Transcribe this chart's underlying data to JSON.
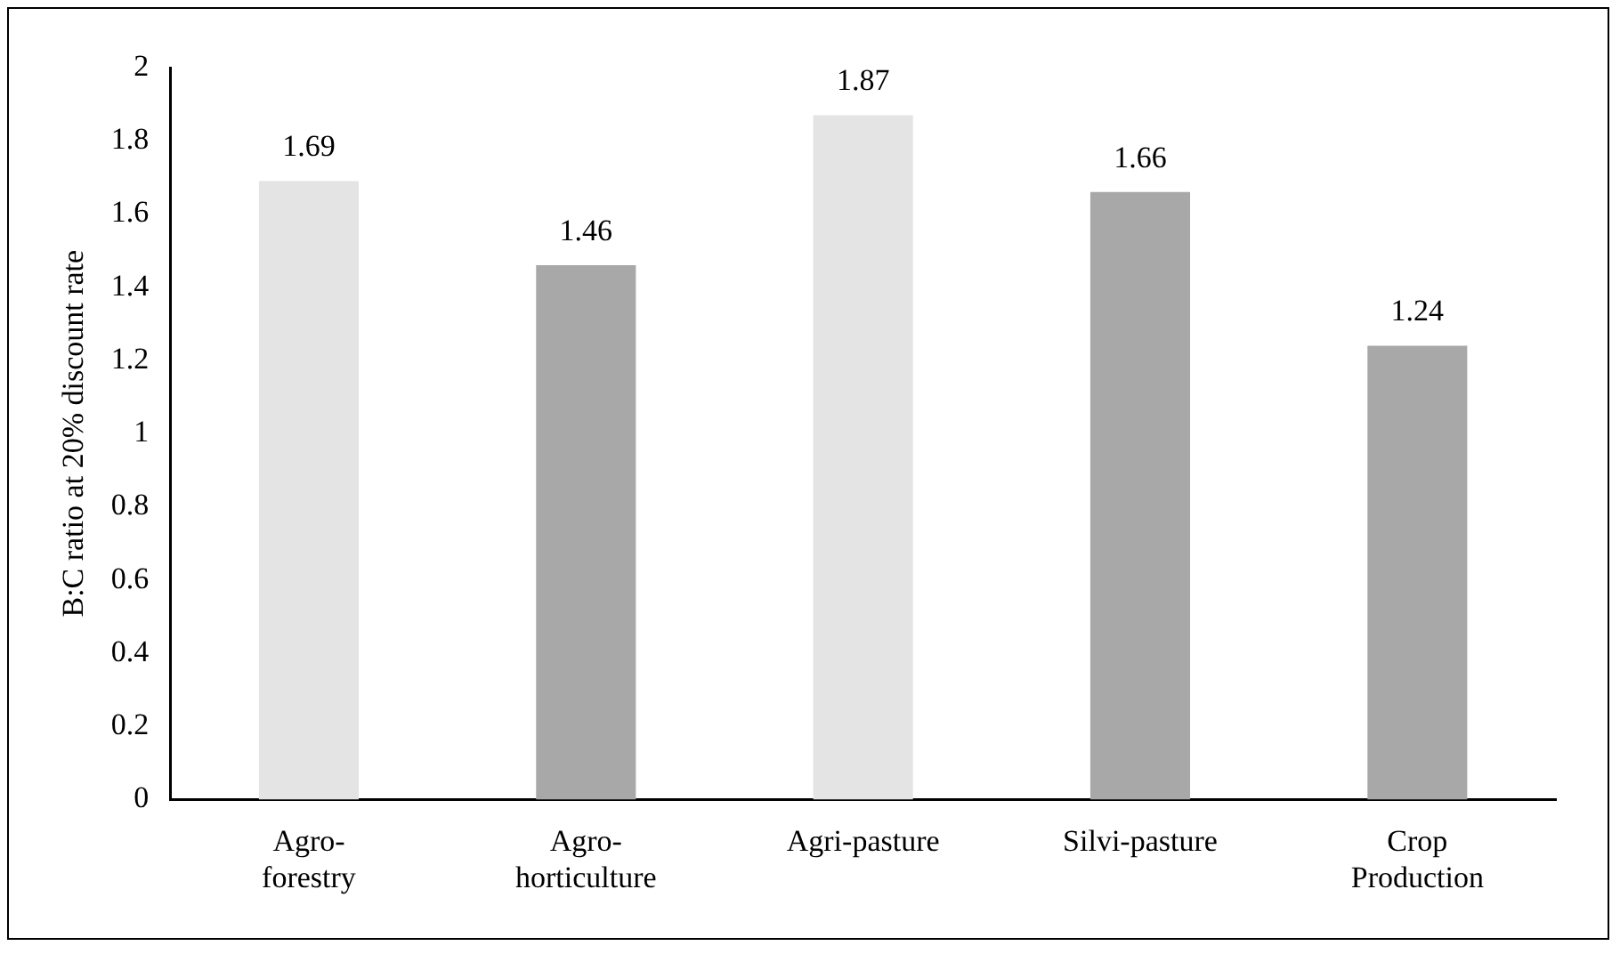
{
  "chart_data": {
    "type": "bar",
    "ylabel": "B:C ratio at 20% discount rate",
    "categories": [
      "Agro-\nforestry",
      "Agro-\nhorticulture",
      "Agri-pasture",
      "Silvi-pasture",
      "Crop\nProduction"
    ],
    "values": [
      1.69,
      1.46,
      1.87,
      1.66,
      1.24
    ],
    "colors": [
      "#e4e4e4",
      "#a8a8a8",
      "#e4e4e4",
      "#a8a8a8",
      "#a8a8a8"
    ],
    "ylim": [
      0,
      2
    ],
    "yticks": [
      0,
      0.2,
      0.4,
      0.6,
      0.8,
      1,
      1.2,
      1.4,
      1.6,
      1.8,
      2
    ],
    "data_labels": true,
    "grid": false,
    "legend": false
  }
}
